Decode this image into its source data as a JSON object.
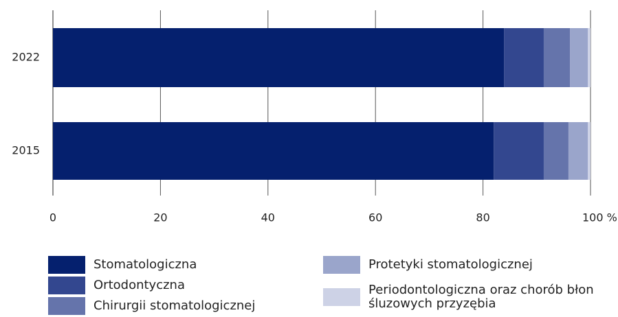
{
  "chart_data": {
    "type": "stacked_barh",
    "categories": [
      "2022",
      "2015"
    ],
    "series": [
      {
        "name": "Stomatologiczna",
        "color": "#05206e",
        "values": [
          83.9,
          82.0
        ]
      },
      {
        "name": "Ortodontyczna",
        "color": "#33478f",
        "values": [
          7.4,
          9.3
        ]
      },
      {
        "name": "Chirurgii stomatologicznej",
        "color": "#6574ab",
        "values": [
          4.9,
          4.6
        ]
      },
      {
        "name": "Protetyki stomatologicznej",
        "color": "#9aa5cb",
        "values": [
          3.3,
          3.6
        ]
      },
      {
        "name": "Periodontologiczna oraz chorób błon śluzowych przyzębia",
        "color": "#cdd2e6",
        "values": [
          0.5,
          0.5
        ]
      }
    ],
    "xlim": [
      0,
      100
    ],
    "xticks": [
      0,
      20,
      40,
      60,
      80,
      {
        "value": 100,
        "label": "100 %"
      }
    ],
    "grid": true
  }
}
